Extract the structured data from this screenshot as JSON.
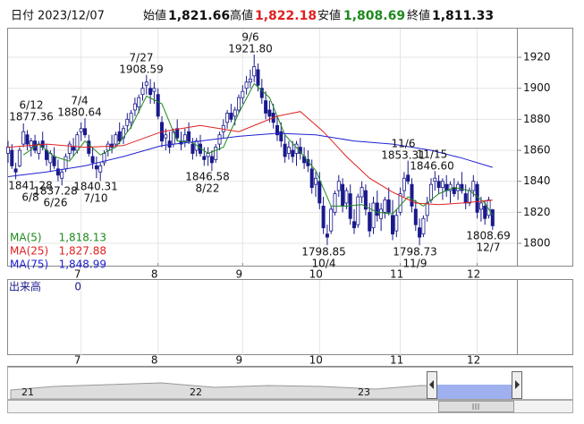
{
  "header": {
    "date_label": "日付",
    "date": "2023/12/07",
    "open_label": "始値",
    "open": "1,821.66",
    "high_label": "高値",
    "high": "1,822.18",
    "low_label": "安値",
    "low": "1,808.69",
    "close_label": "終値",
    "close": "1,811.33"
  },
  "chart_data": {
    "type": "candlestick",
    "up_color": "#ffffff",
    "down_color": "#1a1a8c",
    "ylim": [
      1785,
      1938.5
    ],
    "yticks": [
      1800,
      1820,
      1840,
      1860,
      1880,
      1900,
      1920
    ],
    "grid": true,
    "month_ticks": [
      {
        "value": 19,
        "label": "7"
      },
      {
        "value": 39,
        "label": "8"
      },
      {
        "value": 61,
        "label": "9"
      },
      {
        "value": 81,
        "label": "10"
      },
      {
        "value": 102,
        "label": "11"
      },
      {
        "value": 122,
        "label": "12"
      }
    ],
    "ohlc": [
      [
        1858,
        1866,
        1852,
        1862
      ],
      [
        1860,
        1864,
        1848,
        1850
      ],
      [
        1848,
        1852,
        1841.28,
        1846
      ],
      [
        1850,
        1862,
        1849,
        1860
      ],
      [
        1864,
        1877.36,
        1862,
        1872
      ],
      [
        1870,
        1873,
        1860,
        1864
      ],
      [
        1862,
        1868,
        1856,
        1866
      ],
      [
        1866,
        1870,
        1858,
        1860
      ],
      [
        1858,
        1866,
        1854,
        1864
      ],
      [
        1866,
        1872,
        1860,
        1862
      ],
      [
        1860,
        1864,
        1850,
        1854
      ],
      [
        1852,
        1860,
        1846,
        1858
      ],
      [
        1856,
        1862,
        1848,
        1850
      ],
      [
        1848,
        1854,
        1840,
        1844
      ],
      [
        1842,
        1848,
        1837.28,
        1846
      ],
      [
        1848,
        1858,
        1846,
        1856
      ],
      [
        1858,
        1866,
        1854,
        1864
      ],
      [
        1862,
        1868,
        1856,
        1860
      ],
      [
        1860,
        1872,
        1858,
        1870
      ],
      [
        1872,
        1878,
        1866,
        1874
      ],
      [
        1874,
        1880.64,
        1868,
        1870
      ],
      [
        1866,
        1870,
        1856,
        1858
      ],
      [
        1856,
        1862,
        1848,
        1852
      ],
      [
        1850,
        1856,
        1842,
        1848
      ],
      [
        1846,
        1852,
        1840.31,
        1850
      ],
      [
        1852,
        1860,
        1850,
        1858
      ],
      [
        1860,
        1866,
        1856,
        1864
      ],
      [
        1864,
        1870,
        1858,
        1862
      ],
      [
        1864,
        1872,
        1862,
        1870
      ],
      [
        1872,
        1878,
        1864,
        1866
      ],
      [
        1868,
        1876,
        1864,
        1874
      ],
      [
        1876,
        1884,
        1872,
        1880
      ],
      [
        1878,
        1886,
        1874,
        1884
      ],
      [
        1886,
        1894,
        1882,
        1890
      ],
      [
        1888,
        1896,
        1884,
        1894
      ],
      [
        1896,
        1904,
        1892,
        1900
      ],
      [
        1902,
        1908.59,
        1896,
        1904
      ],
      [
        1900,
        1906,
        1890,
        1896
      ],
      [
        1898,
        1904,
        1890,
        1900
      ],
      [
        1896,
        1900,
        1880,
        1882
      ],
      [
        1878,
        1882,
        1862,
        1866
      ],
      [
        1868,
        1874,
        1860,
        1870
      ],
      [
        1866,
        1872,
        1858,
        1862
      ],
      [
        1864,
        1874,
        1862,
        1872
      ],
      [
        1874,
        1880,
        1866,
        1868
      ],
      [
        1866,
        1872,
        1860,
        1864
      ],
      [
        1866,
        1874,
        1862,
        1870
      ],
      [
        1872,
        1878,
        1864,
        1866
      ],
      [
        1864,
        1868,
        1854,
        1858
      ],
      [
        1860,
        1868,
        1856,
        1866
      ],
      [
        1864,
        1870,
        1856,
        1858
      ],
      [
        1856,
        1862,
        1850,
        1854
      ],
      [
        1856,
        1862,
        1850,
        1858
      ],
      [
        1856,
        1860,
        1846.58,
        1852
      ],
      [
        1854,
        1864,
        1852,
        1862
      ],
      [
        1864,
        1872,
        1860,
        1870
      ],
      [
        1872,
        1880,
        1868,
        1876
      ],
      [
        1878,
        1886,
        1874,
        1884
      ],
      [
        1884,
        1890,
        1878,
        1880
      ],
      [
        1882,
        1888,
        1876,
        1886
      ],
      [
        1886,
        1896,
        1884,
        1894
      ],
      [
        1894,
        1902,
        1890,
        1898
      ],
      [
        1900,
        1908,
        1896,
        1904
      ],
      [
        1904,
        1912,
        1900,
        1906
      ],
      [
        1908,
        1921.8,
        1904,
        1914
      ],
      [
        1912,
        1916,
        1898,
        1902
      ],
      [
        1900,
        1906,
        1890,
        1894
      ],
      [
        1892,
        1898,
        1880,
        1884
      ],
      [
        1886,
        1892,
        1878,
        1882
      ],
      [
        1884,
        1890,
        1874,
        1878
      ],
      [
        1876,
        1882,
        1866,
        1870
      ],
      [
        1872,
        1878,
        1862,
        1866
      ],
      [
        1864,
        1870,
        1852,
        1856
      ],
      [
        1858,
        1866,
        1854,
        1862
      ],
      [
        1860,
        1866,
        1852,
        1856
      ],
      [
        1858,
        1866,
        1850,
        1864
      ],
      [
        1862,
        1868,
        1854,
        1858
      ],
      [
        1856,
        1862,
        1848,
        1852
      ],
      [
        1854,
        1860,
        1846,
        1850
      ],
      [
        1848,
        1854,
        1832,
        1836
      ],
      [
        1838,
        1846,
        1830,
        1842
      ],
      [
        1840,
        1846,
        1822,
        1826
      ],
      [
        1824,
        1830,
        1806,
        1810
      ],
      [
        1806,
        1812,
        1798.85,
        1804
      ],
      [
        1808,
        1824,
        1806,
        1822
      ],
      [
        1820,
        1834,
        1818,
        1832
      ],
      [
        1834,
        1844,
        1830,
        1840
      ],
      [
        1838,
        1842,
        1820,
        1824
      ],
      [
        1826,
        1836,
        1822,
        1834
      ],
      [
        1832,
        1838,
        1812,
        1816
      ],
      [
        1814,
        1822,
        1806,
        1810
      ],
      [
        1812,
        1832,
        1810,
        1830
      ],
      [
        1830,
        1840,
        1826,
        1836
      ],
      [
        1834,
        1838,
        1818,
        1822
      ],
      [
        1820,
        1826,
        1804,
        1808
      ],
      [
        1810,
        1830,
        1806,
        1826
      ],
      [
        1826,
        1834,
        1814,
        1818
      ],
      [
        1816,
        1826,
        1808,
        1822
      ],
      [
        1820,
        1830,
        1816,
        1828
      ],
      [
        1828,
        1836,
        1818,
        1820
      ],
      [
        1818,
        1828,
        1802,
        1806
      ],
      [
        1808,
        1822,
        1804,
        1818
      ],
      [
        1820,
        1836,
        1818,
        1832
      ],
      [
        1834,
        1846,
        1830,
        1842
      ],
      [
        1844,
        1853.31,
        1838,
        1840
      ],
      [
        1838,
        1842,
        1820,
        1824
      ],
      [
        1822,
        1828,
        1808,
        1812
      ],
      [
        1810,
        1816,
        1798.73,
        1804
      ],
      [
        1806,
        1818,
        1804,
        1816
      ],
      [
        1818,
        1830,
        1814,
        1826
      ],
      [
        1828,
        1842,
        1826,
        1838
      ],
      [
        1840,
        1846.6,
        1834,
        1842
      ],
      [
        1840,
        1844,
        1832,
        1836
      ],
      [
        1836,
        1842,
        1828,
        1840
      ],
      [
        1838,
        1844,
        1830,
        1834
      ],
      [
        1834,
        1840,
        1826,
        1838
      ],
      [
        1836,
        1842,
        1830,
        1832
      ],
      [
        1834,
        1840,
        1828,
        1838
      ],
      [
        1838,
        1846,
        1832,
        1834
      ],
      [
        1832,
        1838,
        1822,
        1826
      ],
      [
        1826,
        1836,
        1824,
        1834
      ],
      [
        1834,
        1844,
        1830,
        1840
      ],
      [
        1838,
        1840,
        1816,
        1820
      ],
      [
        1822,
        1830,
        1814,
        1826
      ],
      [
        1824,
        1828,
        1812,
        1816
      ],
      [
        1818,
        1830,
        1816,
        1828
      ],
      [
        1821.66,
        1822.18,
        1808.69,
        1811.33
      ]
    ],
    "ma": [
      {
        "name": "MA(5)",
        "color": "#1e8a1e",
        "legend_value": "1,818.13",
        "x": [
          4,
          8,
          12,
          16,
          20,
          24,
          28,
          32,
          36,
          40,
          44,
          48,
          52,
          56,
          60,
          64,
          68,
          72,
          76,
          80,
          84,
          88,
          92,
          96,
          100,
          104,
          108,
          112,
          116,
          120,
          124,
          126
        ],
        "values": [
          1857,
          1864,
          1856,
          1853,
          1866,
          1857,
          1862,
          1875,
          1895,
          1890,
          1866,
          1865,
          1858,
          1862,
          1884,
          1903,
          1894,
          1870,
          1859,
          1847,
          1824,
          1824,
          1825,
          1820,
          1819,
          1830,
          1824,
          1832,
          1836,
          1834,
          1826,
          1818.13
        ]
      },
      {
        "name": "MA(25)",
        "color": "#e02020",
        "legend_value": "1,827.88",
        "x": [
          0,
          10,
          20,
          30,
          40,
          50,
          60,
          70,
          76,
          82,
          88,
          94,
          100,
          106,
          112,
          118,
          126
        ],
        "values": [
          1862,
          1864,
          1862,
          1863,
          1872,
          1876,
          1872,
          1882,
          1885,
          1872,
          1856,
          1842,
          1833,
          1826,
          1825,
          1826,
          1827.88
        ]
      },
      {
        "name": "MA(75)",
        "color": "#2020d0",
        "legend_value": "1,848.99",
        "x": [
          0,
          10,
          20,
          30,
          40,
          50,
          60,
          70,
          80,
          90,
          100,
          110,
          118,
          126
        ],
        "values": [
          1843,
          1846,
          1850,
          1856,
          1863,
          1866,
          1869,
          1871,
          1870,
          1866,
          1864,
          1860,
          1855,
          1848.99
        ]
      }
    ],
    "annotations": [
      {
        "date": "6/12",
        "price": "1877.36"
      },
      {
        "date": "7/4",
        "price": "1880.64"
      },
      {
        "date": "7/27",
        "price": "1908.59"
      },
      {
        "date": "9/6",
        "price": "1921.80"
      },
      {
        "date": "11/6",
        "price": "1853.31"
      },
      {
        "date": "11/15",
        "price": "1846.60"
      },
      {
        "date": "6/8",
        "price": "1841.28"
      },
      {
        "date": "6/26",
        "price": "1837.28"
      },
      {
        "date": "7/10",
        "price": "1840.31"
      },
      {
        "date": "8/22",
        "price": "1846.58"
      },
      {
        "date": "10/4",
        "price": "1798.85"
      },
      {
        "date": "11/9",
        "price": "1798.73"
      },
      {
        "date": "12/7",
        "price": "1808.69"
      }
    ],
    "volume_label": "出来高",
    "volume_value": 0,
    "navigator_labels": [
      21,
      22,
      23
    ]
  }
}
